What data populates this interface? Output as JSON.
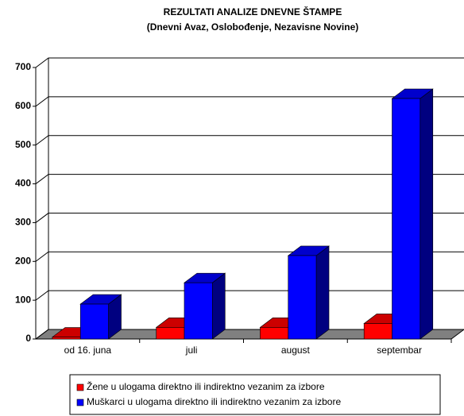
{
  "chart_data": {
    "type": "bar3d",
    "title": "REZULTATI ANALIZE DNEVNE ŠTAMPE",
    "subtitle": "(Dnevni Avaz, Oslobođenje, Nezavisne Novine)",
    "categories": [
      "od 16. juna",
      "juli",
      "august",
      "septembar"
    ],
    "series": [
      {
        "name": "Žene u ulogama direktno ili indirektno vezanim za izbore",
        "color": "#ff0000",
        "values": [
          5,
          30,
          30,
          40
        ]
      },
      {
        "name": "Muškarci u ulogama direktno ili indirektno vezanim za izbore",
        "color": "#0000ff",
        "values": [
          90,
          145,
          215,
          620
        ]
      }
    ],
    "ylim": [
      0,
      700
    ],
    "yticks": [
      0,
      100,
      200,
      300,
      400,
      500,
      600,
      700
    ],
    "grid": true,
    "legend": "bottom"
  }
}
